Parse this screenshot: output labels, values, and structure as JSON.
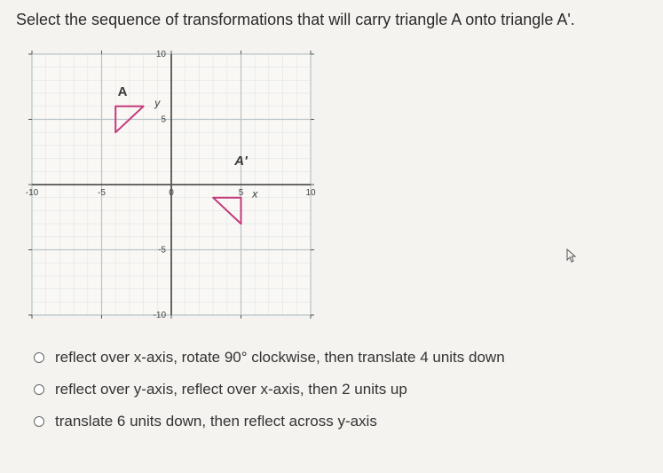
{
  "question": "Select the sequence of transformations that will carry triangle A onto triangle A'.",
  "graph": {
    "xmin": -10,
    "xmax": 10,
    "ymin": -10,
    "ymax": 10,
    "major_step": 5,
    "minor_step": 1,
    "bg_color": "#faf8f5",
    "major_grid_color": "#b8c4c8",
    "minor_grid_color": "#dde4e6",
    "axis_color": "#555",
    "tick_label_color": "#444",
    "tick_label_fontsize": 10,
    "labels": {
      "y": "y",
      "x": "x",
      "A": "A",
      "Ap": "A'"
    },
    "letter_fontsize": 15,
    "letter_color": "#3a3a3a",
    "letter_weight": "bold",
    "triangle_color": "#c23b7a",
    "triangle_stroke": 2,
    "triangleA": [
      [
        -4,
        6
      ],
      [
        -2,
        6
      ],
      [
        -4,
        4
      ]
    ],
    "triangleAp": [
      [
        3,
        -1
      ],
      [
        5,
        -1
      ],
      [
        5,
        -3
      ]
    ],
    "ticks": {
      "x": [
        {
          "v": -10,
          "l": "-10"
        },
        {
          "v": -5,
          "l": "-5"
        },
        {
          "v": 0,
          "l": "0"
        },
        {
          "v": 5,
          "l": "5"
        },
        {
          "v": 10,
          "l": "10"
        }
      ],
      "y": [
        {
          "v": -10,
          "l": "-10"
        },
        {
          "v": -5,
          "l": "-5"
        },
        {
          "v": 5,
          "l": "5"
        },
        {
          "v": 10,
          "l": "10"
        }
      ]
    },
    "axis_label_positions": {
      "A": [
        -3.5,
        6.8
      ],
      "Ap": [
        5,
        1.5
      ],
      "y": [
        -1,
        6
      ],
      "x": [
        6,
        -1
      ]
    }
  },
  "options": [
    "reflect over x-axis, rotate 90° clockwise, then translate 4 units down",
    "reflect over y-axis, reflect over x-axis, then 2 units up",
    "translate 6 units down, then reflect across y-axis"
  ]
}
